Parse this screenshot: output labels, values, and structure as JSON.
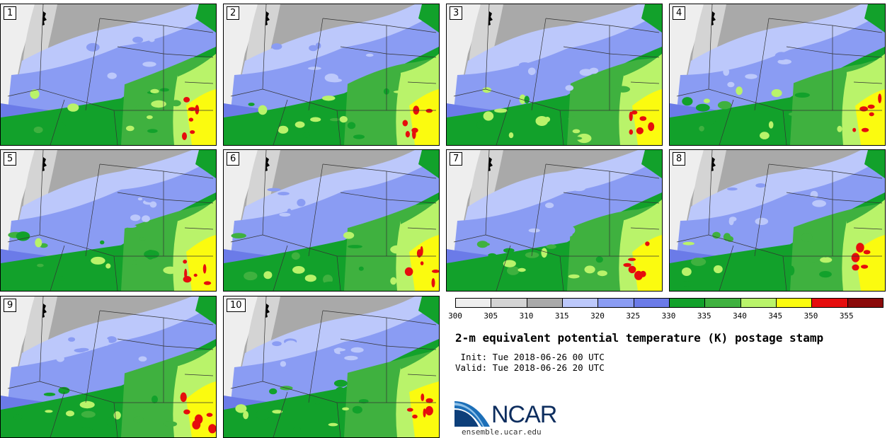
{
  "panels": [
    {
      "label": "1"
    },
    {
      "label": "2"
    },
    {
      "label": "3"
    },
    {
      "label": "4"
    },
    {
      "label": "5"
    },
    {
      "label": "6"
    },
    {
      "label": "7"
    },
    {
      "label": "8"
    },
    {
      "label": "9"
    },
    {
      "label": "10"
    }
  ],
  "legend": {
    "ticks": [
      "300",
      "305",
      "310",
      "315",
      "320",
      "325",
      "330",
      "335",
      "340",
      "345",
      "350",
      "355"
    ],
    "colors": [
      "#eeeeee",
      "#d4d4d4",
      "#a9a9a9",
      "#bcc8fb",
      "#8a9cf3",
      "#6b7be8",
      "#12a12b",
      "#3fb13f",
      "#b9f36a",
      "#fbfb0f",
      "#e60d0d",
      "#8b0a0a"
    ]
  },
  "title": "2-m equivalent potential temperature (K) postage stamp",
  "init": " Init: Tue 2018-06-26 00 UTC",
  "valid": "Valid: Tue 2018-06-26 20 UTC",
  "logo_text": "NCAR",
  "site": "ensemble.ucar.edu"
}
